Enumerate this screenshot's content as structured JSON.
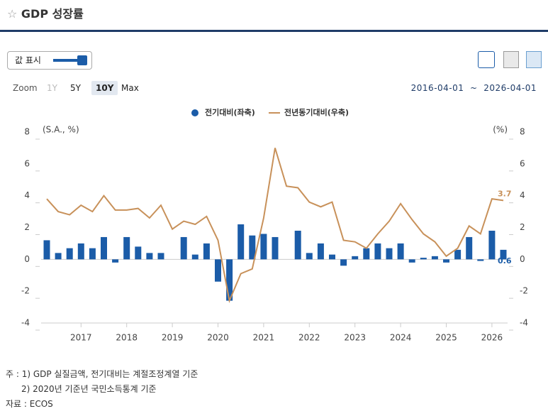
{
  "header": {
    "title": "GDP 성장률"
  },
  "controls": {
    "toggle": "값 표시",
    "zoom_label": "Zoom",
    "zoom_options": [
      "1Y",
      "5Y",
      "10Y",
      "Max"
    ],
    "date_from": "2016-04-01",
    "date_sep": "~",
    "date_to": "2026-04-01"
  },
  "chart_data": {
    "type": "combo",
    "y_unit": "(S.A., %)",
    "y2_unit": "(%)",
    "categories": [
      null,
      null,
      null,
      "2017",
      null,
      null,
      null,
      "2018",
      null,
      null,
      null,
      "2019",
      null,
      null,
      null,
      "2020",
      null,
      null,
      null,
      "2021",
      null,
      null,
      null,
      "2022",
      null,
      null,
      null,
      "2023",
      null,
      null,
      null,
      "2024",
      null,
      null,
      null,
      "2025",
      null,
      null,
      null,
      "2026",
      null
    ],
    "series": [
      {
        "name": "전기대비(좌축)",
        "type": "bar",
        "color": "#1b5ca8",
        "values": [
          1.2,
          0.4,
          0.7,
          1.0,
          0.7,
          1.4,
          -0.2,
          1.4,
          0.8,
          0.4,
          0.4,
          0.0,
          1.4,
          0.3,
          1.0,
          -1.4,
          -2.6,
          2.2,
          1.5,
          1.6,
          1.4,
          0.0,
          1.8,
          0.4,
          1.0,
          0.3,
          -0.4,
          0.2,
          0.7,
          1.0,
          0.7,
          1.0,
          -0.2,
          0.1,
          0.2,
          -0.2,
          0.6,
          1.4,
          -0.1,
          1.8,
          0.6
        ]
      },
      {
        "name": "전년동기대비(우축)",
        "type": "line",
        "axis": "y2",
        "color": "#c8915a",
        "values": [
          3.8,
          3.0,
          2.8,
          3.4,
          3.0,
          4.0,
          3.1,
          3.1,
          3.2,
          2.6,
          3.4,
          1.9,
          2.4,
          2.2,
          2.7,
          1.2,
          -2.6,
          -0.9,
          -0.6,
          2.6,
          7.0,
          4.6,
          4.5,
          3.6,
          3.3,
          3.6,
          1.2,
          1.1,
          0.7,
          1.6,
          2.4,
          3.5,
          2.5,
          1.6,
          1.1,
          0.2,
          0.7,
          2.1,
          1.6,
          3.8,
          3.7
        ]
      }
    ],
    "ylim": [
      -4,
      8
    ],
    "yticks": [
      -4,
      -2,
      0,
      2,
      4,
      6,
      8
    ],
    "y2lim": [
      -4,
      8
    ],
    "y2ticks": [
      -4,
      -2,
      0,
      2,
      4,
      6,
      8
    ],
    "legend": "top"
  },
  "notes": [
    "주 : 1) GDP 실질금액, 전기대비는 계절조정계열 기준",
    "2) 2020년 기준년 국민소득통계 기준"
  ],
  "source": "자료 : ECOS"
}
